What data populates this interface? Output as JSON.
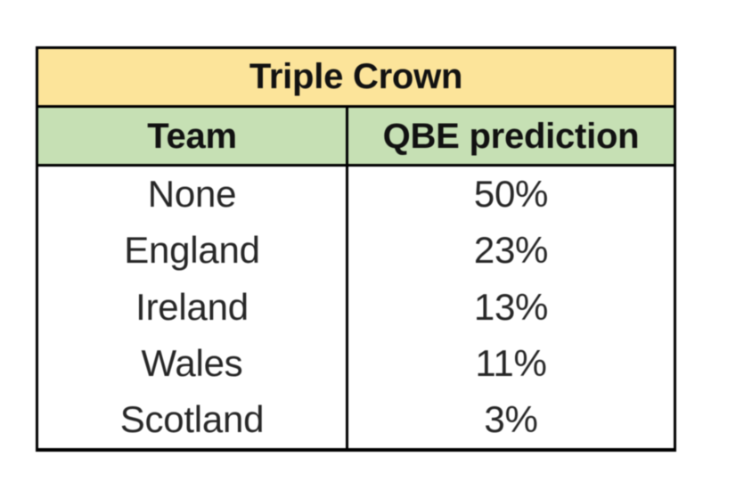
{
  "page": {
    "background_color": "#ffffff"
  },
  "chart_data": {
    "type": "table",
    "title": "Triple Crown",
    "columns": [
      "Team",
      "QBE prediction"
    ],
    "rows": [
      {
        "team": "None",
        "prediction": "50%"
      },
      {
        "team": "England",
        "prediction": "23%"
      },
      {
        "team": "Ireland",
        "prediction": "13%"
      },
      {
        "team": "Wales",
        "prediction": "11%"
      },
      {
        "team": "Scotland",
        "prediction": "3%"
      }
    ],
    "colors": {
      "title_background": "#fce49a",
      "header_background": "#c6e0b4",
      "body_background": "#ffffff",
      "border": "#000000",
      "header_text": "#111111",
      "body_text": "#262626"
    }
  }
}
